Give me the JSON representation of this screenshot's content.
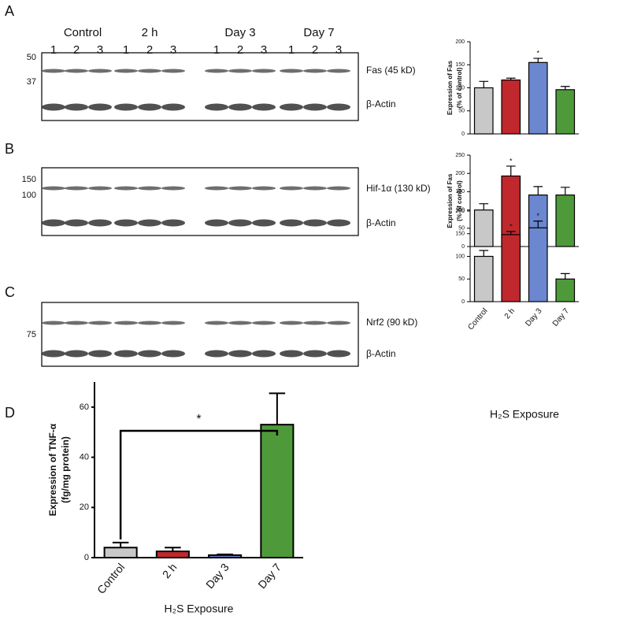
{
  "panels": [
    "A",
    "B",
    "C",
    "D"
  ],
  "blots": [
    {
      "groups": [
        "Control",
        "2 h",
        "Day 3",
        "Day 7"
      ],
      "lanes": [
        1,
        2,
        3,
        1,
        2,
        3,
        1,
        2,
        3,
        1,
        2,
        3
      ],
      "markers": [
        50,
        37
      ],
      "bands": [
        "Fas (45 kD)",
        "β-Actin"
      ]
    },
    {
      "markers": [
        150,
        100
      ],
      "bands": [
        "Hif-1α (130 kD)",
        "β-Actin"
      ]
    },
    {
      "markers": [
        75
      ],
      "bands": [
        "Nrf2 (90 kD)",
        "β-Actin"
      ]
    }
  ],
  "chart_data": [
    {
      "type": "bar",
      "ylabel": [
        "Expression of Fas",
        "(% of control)"
      ],
      "categories": [
        null,
        null,
        null,
        null
      ],
      "values": [
        100,
        117,
        155,
        96
      ],
      "errors": [
        14,
        4,
        9,
        7
      ],
      "annotations": [
        null,
        null,
        "*",
        null
      ],
      "colors": [
        "#c8c8c8",
        "#c0282d",
        "#6a87d0",
        "#4e9a3a"
      ],
      "ylim": [
        0,
        200
      ],
      "yticks": [
        0,
        50,
        100,
        150,
        200
      ]
    },
    {
      "type": "bar",
      "ylabel": [
        "Expression of Fas",
        "(% of control)"
      ],
      "categories": [
        null,
        null,
        null,
        null
      ],
      "values": [
        100,
        193,
        141,
        141
      ],
      "errors": [
        17,
        27,
        23,
        21
      ],
      "annotations": [
        null,
        "*",
        null,
        null
      ],
      "colors": [
        "#c8c8c8",
        "#c0282d",
        "#6a87d0",
        "#4e9a3a"
      ],
      "ylim": [
        0,
        250
      ],
      "yticks": [
        0,
        50,
        100,
        150,
        200,
        250
      ]
    },
    {
      "type": "bar",
      "xlabel": "H₂S Exposure",
      "categories": [
        "Control",
        "2 h",
        "Day 3",
        "Day 7"
      ],
      "values": [
        100,
        148,
        163,
        50
      ],
      "errors": [
        13,
        7,
        15,
        12
      ],
      "annotations": [
        null,
        "*",
        "*",
        null
      ],
      "colors": [
        "#c8c8c8",
        "#c0282d",
        "#6a87d0",
        "#4e9a3a"
      ],
      "ylim": [
        0,
        200
      ],
      "yticks": [
        0,
        50,
        100,
        150,
        200
      ]
    },
    {
      "type": "bar",
      "ylabel": [
        "Expression of TNF-α",
        "(fg/mg protein)"
      ],
      "xlabel": "H₂S Exposure",
      "categories": [
        "Control",
        "2 h",
        "Day 3",
        "Day 7"
      ],
      "values": [
        4,
        2.5,
        1,
        53
      ],
      "errors": [
        2,
        1.5,
        0.3,
        12.5
      ],
      "bracket_label": "*",
      "colors": [
        "#c8c8c8",
        "#c0282d",
        "#6a87d0",
        "#4e9a3a"
      ],
      "ylim": [
        0,
        70
      ],
      "yticks": [
        0,
        20,
        40,
        60
      ]
    }
  ]
}
